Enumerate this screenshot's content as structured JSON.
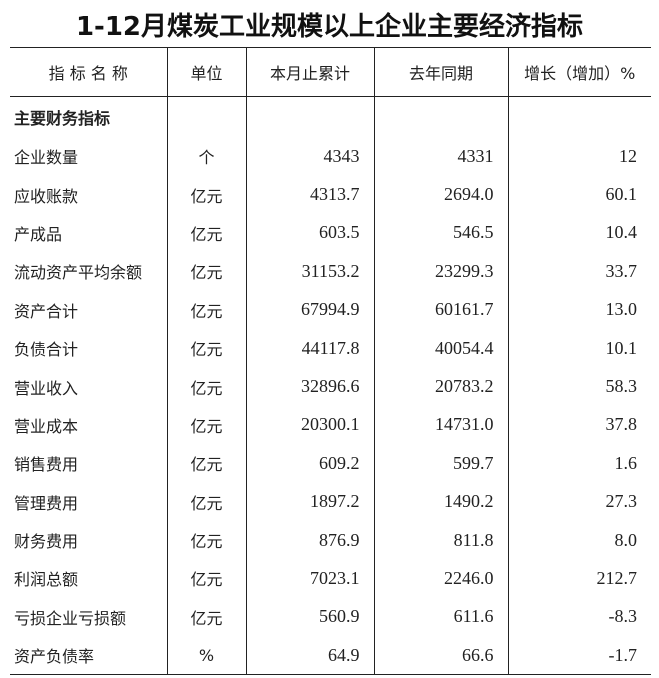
{
  "title": "1-12月煤炭工业规模以上企业主要经济指标",
  "headers": [
    "指 标 名 称",
    "单位",
    "本月止累计",
    "去年同期",
    "增长（增加）%"
  ],
  "section": "主要财务指标",
  "rows": [
    {
      "name": "企业数量",
      "unit": "个",
      "current": "4343",
      "last_year": "4331",
      "growth": "12"
    },
    {
      "name": "应收账款",
      "unit": "亿元",
      "current": "4313.7",
      "last_year": "2694.0",
      "growth": "60.1"
    },
    {
      "name": "产成品",
      "unit": "亿元",
      "current": "603.5",
      "last_year": "546.5",
      "growth": "10.4"
    },
    {
      "name": "流动资产平均余额",
      "unit": "亿元",
      "current": "31153.2",
      "last_year": "23299.3",
      "growth": "33.7"
    },
    {
      "name": "资产合计",
      "unit": "亿元",
      "current": "67994.9",
      "last_year": "60161.7",
      "growth": "13.0"
    },
    {
      "name": "负债合计",
      "unit": "亿元",
      "current": "44117.8",
      "last_year": "40054.4",
      "growth": "10.1"
    },
    {
      "name": "营业收入",
      "unit": "亿元",
      "current": "32896.6",
      "last_year": "20783.2",
      "growth": "58.3"
    },
    {
      "name": "营业成本",
      "unit": "亿元",
      "current": "20300.1",
      "last_year": "14731.0",
      "growth": "37.8"
    },
    {
      "name": "销售费用",
      "unit": "亿元",
      "current": "609.2",
      "last_year": "599.7",
      "growth": "1.6"
    },
    {
      "name": "管理费用",
      "unit": "亿元",
      "current": "1897.2",
      "last_year": "1490.2",
      "growth": "27.3"
    },
    {
      "name": "财务费用",
      "unit": "亿元",
      "current": "876.9",
      "last_year": "811.8",
      "growth": "8.0"
    },
    {
      "name": "利润总额",
      "unit": "亿元",
      "current": "7023.1",
      "last_year": "2246.0",
      "growth": "212.7"
    },
    {
      "name": "亏损企业亏损额",
      "unit": "亿元",
      "current": "560.9",
      "last_year": "611.6",
      "growth": "-8.3"
    },
    {
      "name": "资产负债率",
      "unit": "%",
      "current": "64.9",
      "last_year": "66.6",
      "growth": "-1.7"
    }
  ]
}
